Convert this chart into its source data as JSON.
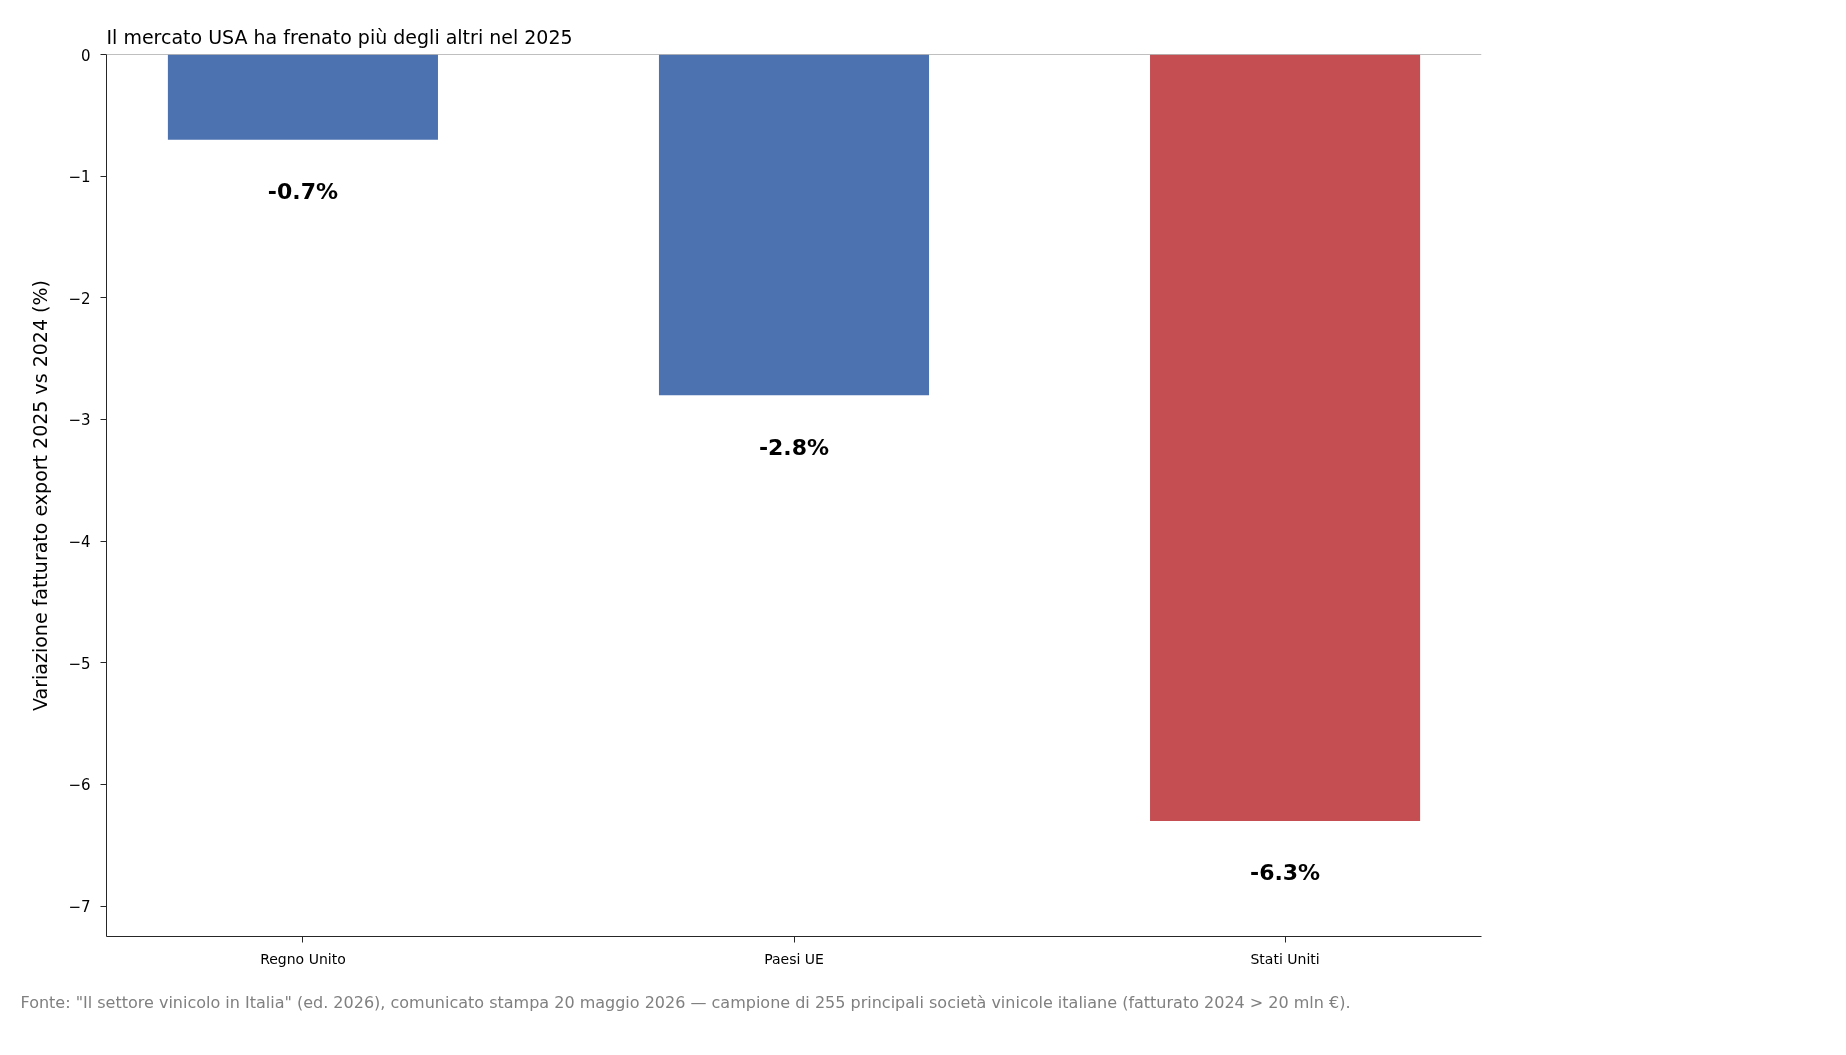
{
  "chart_data": {
    "type": "bar",
    "title": "Il mercato USA ha frenato più degli altri nel 2025",
    "ylabel": "Variazione fatturato export 2025 vs 2024 (%)",
    "categories": [
      "Regno Unito",
      "Paesi UE",
      "Stati Uniti"
    ],
    "values": [
      -0.7,
      -2.8,
      -6.3
    ],
    "colors": [
      "#4c72b0",
      "#4c72b0",
      "#c44e52"
    ],
    "value_labels": [
      "-0.7%",
      "-2.8%",
      "-6.3%"
    ],
    "ylim": [
      -7.25,
      0
    ],
    "yticks": [
      0,
      -1,
      -2,
      -3,
      -4,
      -5,
      -6,
      -7
    ],
    "ref_lines": [
      {
        "axis": "y",
        "value": 0,
        "color": "#808080"
      }
    ],
    "grid": false,
    "annotations": [
      "Fonte: \"Il settore vinicolo in Italia\" (ed. 2026), comunicato stampa 20 maggio 2026 — campione di 255 principali società vinicole italiane (fatturato 2024 > 20 mln €)."
    ]
  }
}
